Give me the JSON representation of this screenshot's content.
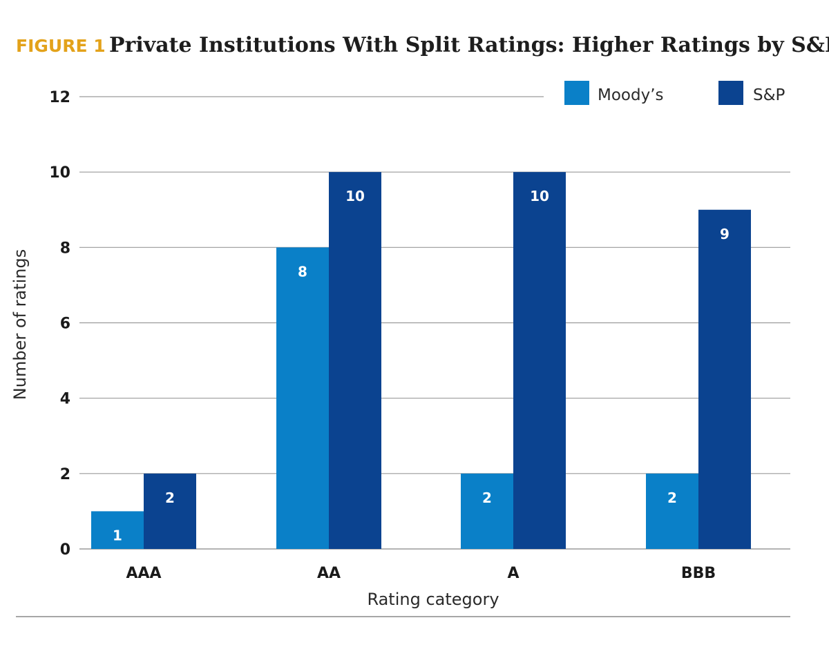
{
  "header": {
    "kicker": "FIGURE 1",
    "title": "Private Institutions With Split Ratings: Higher Ratings by S&P"
  },
  "colors": {
    "kicker": "#E3A21A",
    "title": "#1d1d1d",
    "grid": "#9a9a9a",
    "rule": "#8a8a8a"
  },
  "chart_data": {
    "type": "bar",
    "categories": [
      "AAA",
      "AA",
      "A",
      "BBB"
    ],
    "series": [
      {
        "name": "Moody’s",
        "color": "#0A80C8",
        "values": [
          1,
          8,
          2,
          2
        ]
      },
      {
        "name": "S&P",
        "color": "#0B4390",
        "values": [
          2,
          10,
          10,
          9
        ]
      }
    ],
    "xlabel": "Rating category",
    "ylabel": "Number of ratings",
    "ylim": [
      0,
      12
    ],
    "yticks": [
      0,
      2,
      4,
      6,
      8,
      10,
      12
    ],
    "grid": true,
    "legend": "top-right",
    "data_labels": true
  }
}
